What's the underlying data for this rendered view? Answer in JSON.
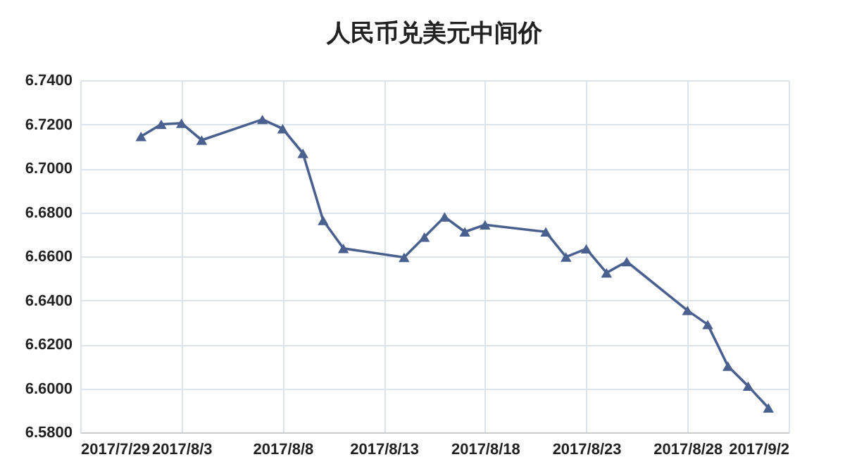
{
  "chart_data": {
    "type": "line",
    "title": "人民币兑美元中间价",
    "x": [
      "2017-08-01",
      "2017-08-02",
      "2017-08-03",
      "2017-08-04",
      "2017-08-07",
      "2017-08-08",
      "2017-08-09",
      "2017-08-10",
      "2017-08-11",
      "2017-08-14",
      "2017-08-15",
      "2017-08-16",
      "2017-08-17",
      "2017-08-18",
      "2017-08-21",
      "2017-08-22",
      "2017-08-23",
      "2017-08-24",
      "2017-08-25",
      "2017-08-28",
      "2017-08-29",
      "2017-08-30",
      "2017-08-31",
      "2017-09-01"
    ],
    "series": [
      {
        "color": "#4a6190",
        "values": [
          6.7145,
          6.72,
          6.7205,
          6.7128,
          6.7222,
          6.718,
          6.7068,
          6.6763,
          6.6636,
          6.6595,
          6.6687,
          6.6779,
          6.6711,
          6.6743,
          6.6711,
          6.6597,
          6.6634,
          6.6525,
          6.6576,
          6.6354,
          6.629,
          6.6101,
          6.601,
          6.5911
        ]
      }
    ],
    "xlim": [
      "2017-07-29",
      "2017-09-02"
    ],
    "xticks": [
      {
        "value": "2017-07-29",
        "label": "2017/7/29"
      },
      {
        "value": "2017-08-03",
        "label": "2017/8/3"
      },
      {
        "value": "2017-08-08",
        "label": "2017/8/8"
      },
      {
        "value": "2017-08-13",
        "label": "2017/8/13"
      },
      {
        "value": "2017-08-18",
        "label": "2017/8/18"
      },
      {
        "value": "2017-08-23",
        "label": "2017/8/23"
      },
      {
        "value": "2017-08-28",
        "label": "2017/8/28"
      },
      {
        "value": "2017-09-02",
        "label": "2017/9/2"
      }
    ],
    "ylim": [
      6.58,
      6.74
    ],
    "yticks": [
      {
        "value": 6.58,
        "label": "6.5800"
      },
      {
        "value": 6.6,
        "label": "6.6000"
      },
      {
        "value": 6.62,
        "label": "6.6200"
      },
      {
        "value": 6.64,
        "label": "6.6400"
      },
      {
        "value": 6.66,
        "label": "6.6600"
      },
      {
        "value": 6.68,
        "label": "6.6800"
      },
      {
        "value": 6.7,
        "label": "6.7000"
      },
      {
        "value": 6.72,
        "label": "6.7200"
      },
      {
        "value": 6.74,
        "label": "6.7400"
      }
    ],
    "grid": true,
    "marker": "triangle",
    "line_style": "solid"
  }
}
